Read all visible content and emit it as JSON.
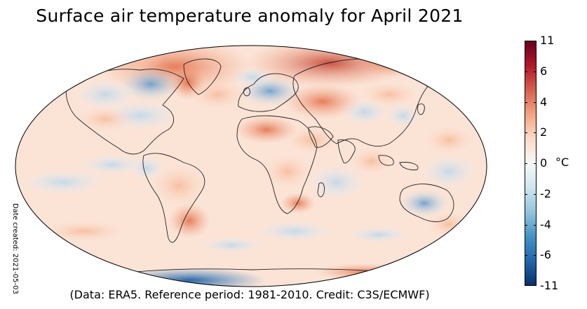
{
  "title": "Surface air temperature anomaly for April 2021",
  "credit": "(Data: ERA5.  Reference period: 1981-2010.  Credit: C3S/ECMWF)",
  "date_created": "Date created: 2021-05-03",
  "colorbar": {
    "unit": "°C",
    "ticks": [
      {
        "value": 11,
        "label": "11"
      },
      {
        "value": 6,
        "label": "6"
      },
      {
        "value": 4,
        "label": "4"
      },
      {
        "value": 2,
        "label": "2"
      },
      {
        "value": 0,
        "label": "0"
      },
      {
        "value": -2,
        "label": "-2"
      },
      {
        "value": -4,
        "label": "-4"
      },
      {
        "value": -6,
        "label": "-6"
      },
      {
        "value": -11,
        "label": "-11"
      }
    ],
    "colors": [
      "#08306b",
      "#2166ac",
      "#4393c3",
      "#92c5de",
      "#d1e5f0",
      "#f7f7f7",
      "#fddbc7",
      "#f4a582",
      "#d6604d",
      "#b2182b",
      "#67001f"
    ]
  }
}
